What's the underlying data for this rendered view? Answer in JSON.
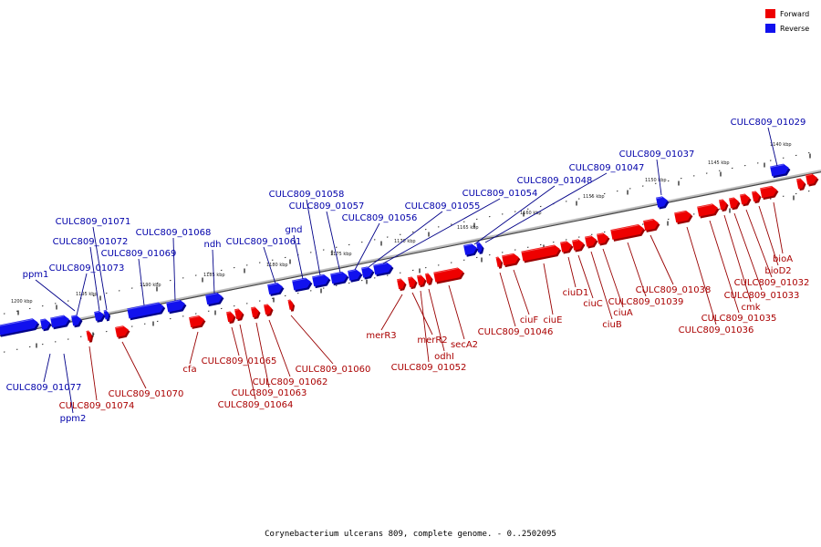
{
  "caption": "Corynebacterium ulcerans 809, complete genome. - 0..2502095",
  "legend": {
    "forward_label": "Forward",
    "reverse_label": "Reverse",
    "forward_color": "#ee0000",
    "reverse_color": "#1111ee",
    "forward_shade": "#990000",
    "reverse_shade": "#000088"
  },
  "scale_labels": [
    "1140 kbp",
    "1145 kbp",
    "1150 kbp",
    "1155 kbp",
    "1160 kbp",
    "1165 kbp",
    "1170 kbp",
    "1175 kbp",
    "1180 kbp",
    "1185 kbp",
    "1190 kbp",
    "1195 kbp",
    "1200 kbp"
  ],
  "genes": [
    {
      "name": "CULC809_01029",
      "strand": "reverse"
    },
    {
      "name": "CULC809_01037",
      "strand": "reverse"
    },
    {
      "name": "CULC809_01047",
      "strand": "reverse"
    },
    {
      "name": "CULC809_01048",
      "strand": "reverse"
    },
    {
      "name": "CULC809_01054",
      "strand": "reverse"
    },
    {
      "name": "CULC809_01055",
      "strand": "reverse"
    },
    {
      "name": "CULC809_01056",
      "strand": "reverse"
    },
    {
      "name": "CULC809_01057",
      "strand": "reverse"
    },
    {
      "name": "CULC809_01058",
      "strand": "reverse"
    },
    {
      "name": "gnd",
      "strand": "reverse"
    },
    {
      "name": "CULC809_01061",
      "strand": "reverse"
    },
    {
      "name": "ndh",
      "strand": "reverse"
    },
    {
      "name": "CULC809_01068",
      "strand": "reverse"
    },
    {
      "name": "CULC809_01069",
      "strand": "reverse"
    },
    {
      "name": "CULC809_01071",
      "strand": "reverse"
    },
    {
      "name": "CULC809_01072",
      "strand": "reverse"
    },
    {
      "name": "CULC809_01073",
      "strand": "reverse"
    },
    {
      "name": "ppm1",
      "strand": "reverse"
    },
    {
      "name": "CULC809_01077",
      "strand": "reverse"
    },
    {
      "name": "ppm2",
      "strand": "reverse"
    },
    {
      "name": "bioA",
      "strand": "forward"
    },
    {
      "name": "bioD2",
      "strand": "forward"
    },
    {
      "name": "CULC809_01032",
      "strand": "forward"
    },
    {
      "name": "CULC809_01033",
      "strand": "forward"
    },
    {
      "name": "cmk",
      "strand": "forward"
    },
    {
      "name": "CULC809_01035",
      "strand": "forward"
    },
    {
      "name": "CULC809_01036",
      "strand": "forward"
    },
    {
      "name": "CULC809_01038",
      "strand": "forward"
    },
    {
      "name": "CULC809_01039",
      "strand": "forward"
    },
    {
      "name": "ciuA",
      "strand": "forward"
    },
    {
      "name": "ciuB",
      "strand": "forward"
    },
    {
      "name": "ciuC",
      "strand": "forward"
    },
    {
      "name": "ciuD1",
      "strand": "forward"
    },
    {
      "name": "ciuE",
      "strand": "forward"
    },
    {
      "name": "ciuF",
      "strand": "forward"
    },
    {
      "name": "CULC809_01046",
      "strand": "forward"
    },
    {
      "name": "secA2",
      "strand": "forward"
    },
    {
      "name": "odhI",
      "strand": "forward"
    },
    {
      "name": "CULC809_01052",
      "strand": "forward"
    },
    {
      "name": "merR2",
      "strand": "forward"
    },
    {
      "name": "merR3",
      "strand": "forward"
    },
    {
      "name": "CULC809_01060",
      "strand": "forward"
    },
    {
      "name": "CULC809_01062",
      "strand": "forward"
    },
    {
      "name": "CULC809_01063",
      "strand": "forward"
    },
    {
      "name": "CULC809_01064",
      "strand": "forward"
    },
    {
      "name": "CULC809_01065",
      "strand": "forward"
    },
    {
      "name": "cfa",
      "strand": "forward"
    },
    {
      "name": "CULC809_01070",
      "strand": "forward"
    },
    {
      "name": "CULC809_01074",
      "strand": "forward"
    }
  ]
}
